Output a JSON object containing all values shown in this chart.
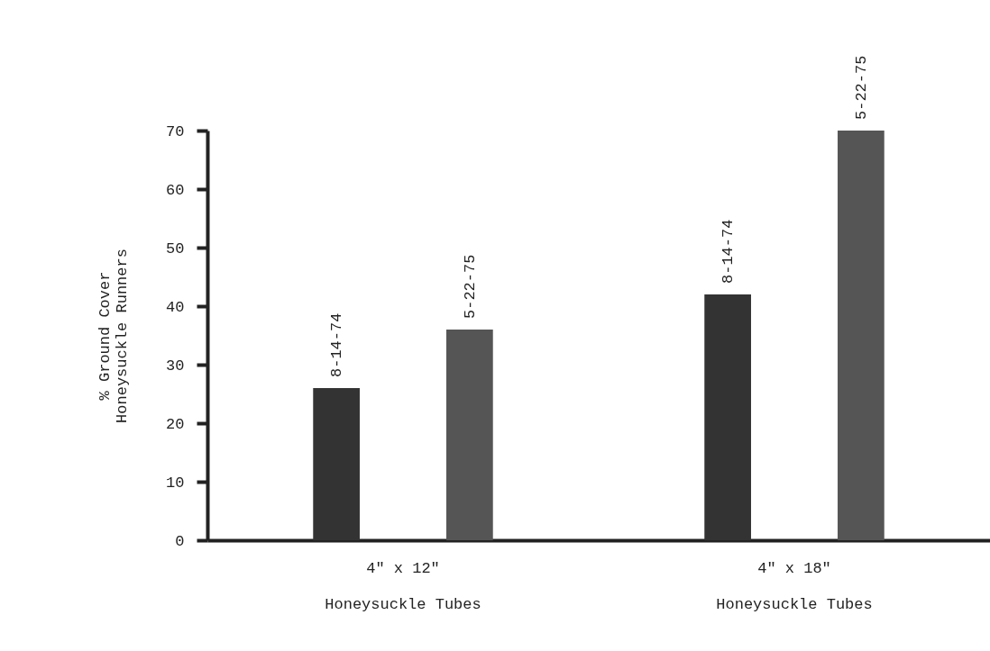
{
  "chart_data": {
    "type": "bar",
    "ylabel": "% Ground Cover\nHoneysuckle Runners",
    "categories": [
      "4\" x 12\"\nHoneysuckle Tubes",
      "4\" x 18\"\nHoneysuckle Tubes"
    ],
    "series": [
      {
        "name": "8-14-74",
        "color": "#333333",
        "values": [
          26,
          42
        ]
      },
      {
        "name": "5-22-75",
        "color": "#555555",
        "values": [
          36,
          70
        ]
      }
    ],
    "ylim": [
      0,
      70
    ],
    "yticks": [
      0,
      10,
      20,
      30,
      40,
      50,
      60,
      70
    ],
    "grid": false,
    "legend": false
  }
}
